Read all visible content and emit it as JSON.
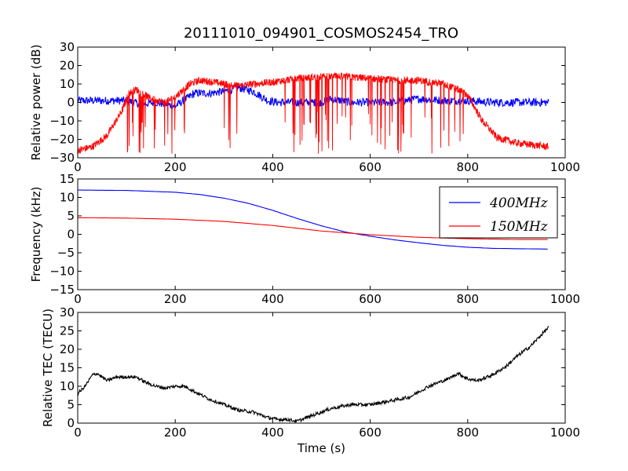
{
  "title": "20111010_094901_COSMOS2454_TRO",
  "colors": {
    "blue": "#0000ff",
    "red": "#ff0000",
    "black": "#000000"
  },
  "chart_data": [
    {
      "type": "line",
      "xlim": [
        0,
        1000
      ],
      "ylim": [
        -30,
        30
      ],
      "xticks": [
        "0",
        "200",
        "400",
        "600",
        "800",
        "1000"
      ],
      "yticks": [
        "30",
        "20",
        "10",
        "0",
        "−10",
        "−20",
        "−30"
      ],
      "xlabel": "",
      "ylabel": "Relative power (dB)",
      "grid": false,
      "series": [
        {
          "color": "blue",
          "noise": 2.2,
          "x": [
            0,
            80,
            100,
            130,
            160,
            200,
            240,
            270,
            300,
            330,
            360,
            390,
            410,
            440,
            500,
            520,
            560,
            600,
            650,
            700,
            750,
            800,
            850,
            900,
            966
          ],
          "y": [
            1,
            1,
            1,
            -1,
            0,
            -2,
            5,
            5,
            6,
            8,
            6,
            1,
            0,
            0,
            0,
            2,
            0,
            0,
            0,
            2,
            1,
            1,
            0,
            0,
            0
          ]
        },
        {
          "color": "red",
          "noise": 2,
          "drop_min": -28,
          "x": [
            0,
            30,
            60,
            90,
            105,
            120,
            150,
            180,
            200,
            230,
            250,
            280,
            300,
            330,
            360,
            400,
            450,
            500,
            550,
            600,
            650,
            700,
            750,
            780,
            800,
            830,
            860,
            900,
            966
          ],
          "y": [
            -26,
            -24,
            -18,
            -5,
            5,
            7,
            2,
            0,
            3,
            10,
            12,
            11,
            10,
            9,
            10,
            11,
            13,
            14,
            14,
            13,
            12,
            12,
            10,
            7,
            4,
            -10,
            -19,
            -22,
            -24
          ],
          "drop_ranges": [
            [
              95,
              230
            ],
            [
              300,
              330
            ],
            [
              400,
              800
            ]
          ]
        }
      ]
    },
    {
      "type": "line",
      "xlim": [
        0,
        1000
      ],
      "ylim": [
        -15,
        15
      ],
      "xticks": [
        "0",
        "200",
        "400",
        "600",
        "800",
        "1000"
      ],
      "yticks": [
        "15",
        "10",
        "5",
        "0",
        "−5",
        "−10",
        "−15"
      ],
      "xlabel": "",
      "ylabel": "Frequency (kHz)",
      "grid": false,
      "legend": "top-right",
      "series": [
        {
          "name": "400MHz",
          "color": "blue",
          "x": [
            0,
            100,
            200,
            250,
            300,
            350,
            400,
            450,
            500,
            550,
            600,
            650,
            700,
            750,
            800,
            850,
            900,
            966
          ],
          "y": [
            12,
            11.9,
            11.4,
            10.8,
            9.8,
            8.4,
            6.5,
            4.3,
            2.3,
            0.6,
            -0.5,
            -1.5,
            -2.3,
            -3,
            -3.5,
            -3.8,
            -3.9,
            -4
          ]
        },
        {
          "name": "150MHz",
          "color": "red",
          "x": [
            0,
            100,
            200,
            300,
            400,
            500,
            600,
            700,
            800,
            900,
            966
          ],
          "y": [
            4.5,
            4.4,
            4.1,
            3.5,
            2.4,
            0.9,
            -0.1,
            -0.8,
            -1.2,
            -1.4,
            -1.4
          ]
        }
      ]
    },
    {
      "type": "line",
      "xlim": [
        0,
        1000
      ],
      "ylim": [
        0,
        30
      ],
      "xticks": [
        "0",
        "200",
        "400",
        "600",
        "800",
        "1000"
      ],
      "yticks": [
        "30",
        "25",
        "20",
        "15",
        "10",
        "5",
        "0"
      ],
      "xlabel": "Time (s)",
      "ylabel": "Relative TEC (TECU)",
      "grid": false,
      "series": [
        {
          "color": "black",
          "noise": 0.45,
          "x": [
            0,
            15,
            30,
            40,
            60,
            80,
            100,
            120,
            140,
            160,
            180,
            200,
            220,
            240,
            270,
            300,
            330,
            360,
            390,
            410,
            430,
            450,
            480,
            520,
            560,
            600,
            640,
            680,
            720,
            760,
            780,
            800,
            820,
            850,
            880,
            900,
            930,
            966
          ],
          "y": [
            8,
            10,
            13,
            13.5,
            11.5,
            12.5,
            12.5,
            12.5,
            11,
            10,
            9.5,
            10,
            10,
            8.5,
            6.5,
            5,
            3.5,
            3,
            1.5,
            1,
            1,
            0.5,
            2,
            4,
            5,
            5,
            6,
            7,
            10,
            12,
            13.5,
            12,
            11.5,
            13,
            15.5,
            18,
            21,
            26
          ]
        }
      ]
    }
  ]
}
